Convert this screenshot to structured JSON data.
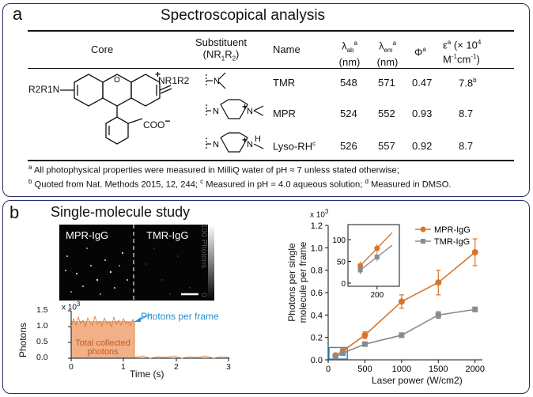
{
  "panel_a": {
    "label": "a",
    "title": "Spectroscopical analysis",
    "headers": {
      "core": "Core",
      "substituent_line1": "Substituent",
      "substituent_line2": "(NR",
      "substituent_sub1": "1",
      "substituent_mid": "R",
      "substituent_sub2": "2",
      "substituent_end": ")",
      "name": "Name",
      "lab": "λ",
      "lab_sub": "ab",
      "lab_sup": "a",
      "lem": "λ",
      "lem_sub": "em",
      "lem_sup": "a",
      "nm": "(nm)",
      "phi": "Φ",
      "phi_sup": "a",
      "eps": "ε",
      "eps_sup": "a",
      "eps_rest": " (× 10",
      "eps_pow": "4",
      "eps_line2": "M",
      "eps_unit_sup1": "-1",
      "eps_unit_mid": "cm",
      "eps_unit_sup2": "-1",
      "eps_unit_end": ")"
    },
    "structure": {
      "left_group": "R2R1N",
      "right_group": "NR1R2",
      "coo": "COO",
      "minus": "−",
      "plus": "+"
    },
    "rows": [
      {
        "name": "TMR",
        "lab": "548",
        "lem": "571",
        "phi": "0.47",
        "eps": "7.8",
        "eps_sup": "b"
      },
      {
        "name": "MPR",
        "lab": "524",
        "lem": "552",
        "phi": "0.93",
        "eps": "8.7",
        "eps_sup": ""
      },
      {
        "name": "Lyso-RH",
        "name_sup": "c",
        "lab": "526",
        "lem": "557",
        "phi": "0.92",
        "eps": "8.7",
        "eps_sup": ""
      }
    ],
    "notes": [
      {
        "sup": "a",
        "text": " All photophysical properties were measured in MilliQ water of pH ≈ 7 unless stated otherwise;"
      },
      {
        "sup": "b",
        "text": " Quoted from Nat. Methods 2015, 12, 244; ",
        "sup2": "c",
        "text2": " Measured in pH = 4.0 aqueous solution; ",
        "sup3": "d",
        "text3": " Measured in DMSO."
      }
    ]
  },
  "panel_b": {
    "label": "b",
    "title": "Single-molecule study",
    "image_labels": {
      "left": "MPR-IgG",
      "right": "TMR-IgG",
      "scale_top": "100",
      "scale_name": "Photons",
      "scale_bottom": "0"
    },
    "trace": {
      "multiplier": "x 10",
      "multiplier_pow": "3",
      "ylabel": "Photons",
      "xlabel": "Time (s)",
      "yticks": [
        "0.0",
        "0.5",
        "1.0",
        "1.5"
      ],
      "xticks": [
        "0",
        "1",
        "2",
        "3"
      ],
      "annotation": "Photons per frame",
      "area_label_line1": "Total collected",
      "area_label_line2": "photons"
    }
  },
  "chart_data": {
    "type": "line",
    "title": "",
    "multiplier": "x 10",
    "multiplier_pow": "3",
    "xlabel": "Laser power (W/cm2)",
    "ylabel_line1": "Photons per single",
    "ylabel_line2": "molecule per frame",
    "xlim": [
      0,
      2100
    ],
    "ylim": [
      0,
      1.2
    ],
    "xticks": [
      "0",
      "500",
      "1000",
      "1500",
      "2000"
    ],
    "yticks": [
      "0.0",
      "0.2",
      "0.4",
      "0.6",
      "0.8",
      "1.0",
      "1.2"
    ],
    "legend": "top-right",
    "series": [
      {
        "name": "MPR-IgG",
        "color": "#d9742b",
        "x": [
          100,
          200,
          500,
          1000,
          1500,
          2000
        ],
        "y": [
          0.04,
          0.08,
          0.22,
          0.52,
          0.69,
          0.96
        ],
        "err": [
          0.01,
          0.02,
          0.03,
          0.06,
          0.11,
          0.12
        ]
      },
      {
        "name": "TMR-IgG",
        "color": "#8a8a8a",
        "x": [
          100,
          200,
          500,
          1000,
          1500,
          2000
        ],
        "y": [
          0.03,
          0.06,
          0.14,
          0.22,
          0.4,
          0.45
        ],
        "err": [
          0.01,
          0.01,
          0.01,
          0.02,
          0.03,
          0.02
        ]
      }
    ],
    "inset": {
      "xtick": "200",
      "yticks": [
        "0",
        "50",
        "100"
      ]
    }
  }
}
